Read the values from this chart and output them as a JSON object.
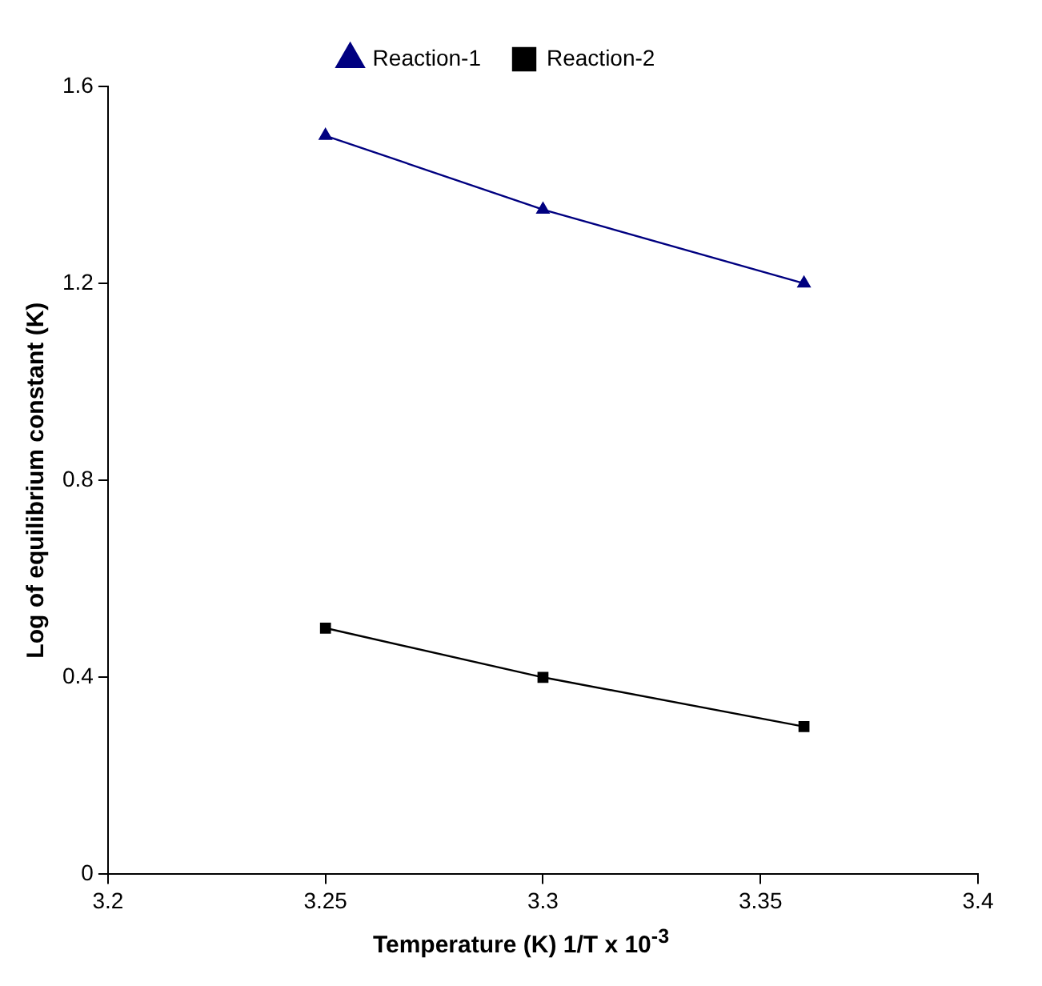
{
  "chart_data": {
    "type": "line",
    "xlabel": "Temperature (K) 1/T x 10$^{-3}$",
    "ylabel": "Log of equilibrium constant (K)",
    "series": [
      {
        "name": "Reaction-1",
        "color": "#000080",
        "marker": "triangle",
        "x": [
          3.25,
          3.3,
          3.36
        ],
        "values": [
          1.5,
          1.35,
          1.2
        ]
      },
      {
        "name": "Reaction-2",
        "color": "#000000",
        "marker": "square",
        "x": [
          3.25,
          3.3,
          3.36
        ],
        "values": [
          0.5,
          0.4,
          0.3
        ]
      }
    ],
    "xlim": [
      3.2,
      3.4
    ],
    "xticks": [
      3.2,
      3.25,
      3.3,
      3.35,
      3.4
    ],
    "ylim": [
      0,
      1.6
    ],
    "yticks": [
      0,
      0.4,
      0.8,
      1.2,
      1.6
    ],
    "grid": false,
    "legend": "top",
    "line_style": "solid"
  }
}
